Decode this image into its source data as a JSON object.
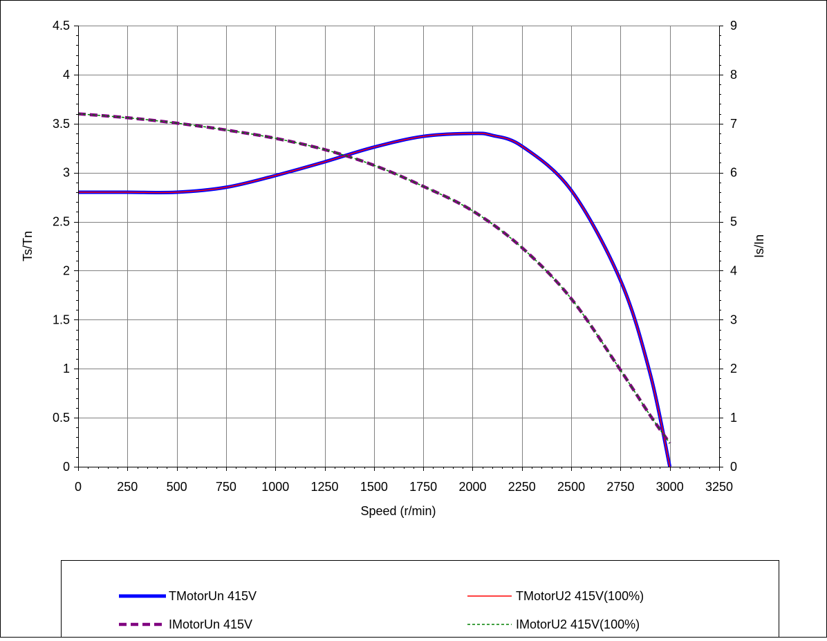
{
  "chart_data": {
    "type": "line",
    "xlabel": "Speed (r/min)",
    "ylabel": "Ts/Tn",
    "y2label": "Is/In",
    "xlim": [
      0,
      3250
    ],
    "ylim": [
      0,
      4.5
    ],
    "y2lim": [
      0,
      9
    ],
    "x_ticks": [
      0,
      250,
      500,
      750,
      1000,
      1250,
      1500,
      1750,
      2000,
      2250,
      2500,
      2750,
      3000,
      3250
    ],
    "y_ticks": [
      0,
      0.5,
      1,
      1.5,
      2,
      2.5,
      3,
      3.5,
      4,
      4.5
    ],
    "y_tick_labels": [
      "0",
      "0.5",
      "1",
      "1.5",
      "2",
      "2.5",
      "3",
      "3.5",
      "4",
      "4.5"
    ],
    "y2_ticks": [
      0,
      1,
      2,
      3,
      4,
      5,
      6,
      7,
      8,
      9
    ],
    "y2_tick_labels": [
      "0",
      "1",
      "2",
      "3",
      "4",
      "5",
      "6",
      "7",
      "8",
      "9"
    ],
    "grid": true,
    "legend_position": "bottom",
    "series": [
      {
        "name": "TMotorUn 415V",
        "axis": "left",
        "color": "#0000ff",
        "style": "solid-thick",
        "x": [
          0,
          250,
          500,
          750,
          1000,
          1250,
          1500,
          1750,
          2000,
          2100,
          2250,
          2500,
          2750,
          2900,
          3000
        ],
        "y": [
          2.8,
          2.8,
          2.8,
          2.85,
          2.97,
          3.11,
          3.26,
          3.37,
          3.4,
          3.38,
          3.27,
          2.82,
          1.9,
          0.95,
          0.0
        ]
      },
      {
        "name": "TMotorU2 415V(100%)",
        "axis": "left",
        "color": "#ff0000",
        "style": "solid-thin",
        "x": [
          0,
          250,
          500,
          750,
          1000,
          1250,
          1500,
          1750,
          2000,
          2100,
          2250,
          2500,
          2750,
          2900,
          3000
        ],
        "y": [
          2.8,
          2.8,
          2.8,
          2.85,
          2.97,
          3.11,
          3.26,
          3.37,
          3.4,
          3.38,
          3.27,
          2.82,
          1.9,
          0.95,
          0.0
        ]
      },
      {
        "name": "IMotorUn 415V",
        "axis": "right",
        "color": "#800080",
        "style": "dashed-thick",
        "x": [
          0,
          250,
          500,
          750,
          1000,
          1250,
          1500,
          1750,
          2000,
          2250,
          2500,
          2750,
          2900,
          3000
        ],
        "y": [
          7.2,
          7.12,
          7.01,
          6.87,
          6.7,
          6.47,
          6.15,
          5.72,
          5.22,
          4.47,
          3.43,
          1.97,
          1.05,
          0.48
        ]
      },
      {
        "name": "IMotorU2 415V(100%)",
        "axis": "right",
        "color": "#008000",
        "style": "dashed-thin",
        "x": [
          0,
          250,
          500,
          750,
          1000,
          1250,
          1500,
          1750,
          2000,
          2250,
          2500,
          2750,
          2900,
          3000
        ],
        "y": [
          7.2,
          7.12,
          7.01,
          6.87,
          6.7,
          6.47,
          6.15,
          5.72,
          5.22,
          4.47,
          3.43,
          1.97,
          1.05,
          0.48
        ]
      }
    ]
  }
}
